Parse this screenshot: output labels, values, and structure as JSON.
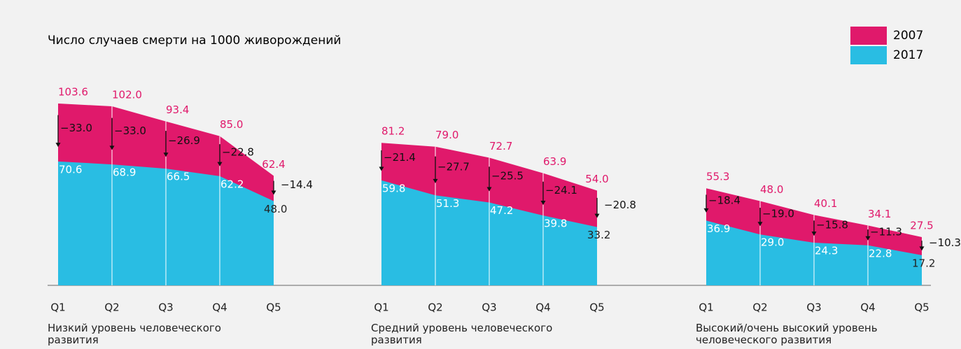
{
  "chart_data": [
    {
      "type": "area",
      "title": "Число случаев смерти на 1000 живорождений",
      "xlabel": "Низкий уровень человеческого развития",
      "categories": [
        "Q1",
        "Q2",
        "Q3",
        "Q4",
        "Q5"
      ],
      "series": [
        {
          "name": "2007",
          "color": "#e0196b",
          "values": [
            103.6,
            102.0,
            93.4,
            85.0,
            62.4
          ],
          "value_labels": [
            "103.6",
            "102.0",
            "93.4",
            "85.0",
            "62.4"
          ]
        },
        {
          "name": "2017",
          "color": "#29bde3",
          "values": [
            70.6,
            68.9,
            66.5,
            62.2,
            48.0
          ],
          "value_labels": [
            "70.6",
            "68.9",
            "66.5",
            "62.2",
            "48.0"
          ]
        }
      ],
      "changes": [
        -33.0,
        -33.0,
        -26.9,
        -22.8,
        -14.4
      ],
      "change_labels": [
        "−33.0",
        "−33.0",
        "−26.9",
        "−22.8",
        "−14.4"
      ],
      "ylim": [
        0,
        110
      ]
    },
    {
      "type": "area",
      "xlabel": "Средний уровень человеческого развития",
      "categories": [
        "Q1",
        "Q2",
        "Q3",
        "Q4",
        "Q5"
      ],
      "series": [
        {
          "name": "2007",
          "color": "#e0196b",
          "values": [
            81.2,
            79.0,
            72.7,
            63.9,
            54.0
          ],
          "value_labels": [
            "81.2",
            "79.0",
            "72.7",
            "63.9",
            "54.0"
          ]
        },
        {
          "name": "2017",
          "color": "#29bde3",
          "values": [
            59.8,
            51.3,
            47.2,
            39.8,
            33.2
          ],
          "value_labels": [
            "59.8",
            "51.3",
            "47.2",
            "39.8",
            "33.2"
          ]
        }
      ],
      "changes": [
        -21.4,
        -27.7,
        -25.5,
        -24.1,
        -20.8
      ],
      "change_labels": [
        "−21.4",
        "−27.7",
        "−25.5",
        "−24.1",
        "−20.8"
      ],
      "ylim": [
        0,
        110
      ]
    },
    {
      "type": "area",
      "xlabel": "Высокий/очень высокий уровень человеческого развития",
      "categories": [
        "Q1",
        "Q2",
        "Q3",
        "Q4",
        "Q5"
      ],
      "series": [
        {
          "name": "2007",
          "color": "#e0196b",
          "values": [
            55.3,
            48.0,
            40.1,
            34.1,
            27.5
          ],
          "value_labels": [
            "55.3",
            "48.0",
            "40.1",
            "34.1",
            "27.5"
          ]
        },
        {
          "name": "2017",
          "color": "#29bde3",
          "values": [
            36.9,
            29.0,
            24.3,
            22.8,
            17.2
          ],
          "value_labels": [
            "36.9",
            "29.0",
            "24.3",
            "22.8",
            "17.2"
          ]
        }
      ],
      "changes": [
        -18.4,
        -19.0,
        -15.8,
        -11.3,
        -10.3
      ],
      "change_labels": [
        "−18.4",
        "−19.0",
        "−15.8",
        "−11.3",
        "−10.3"
      ],
      "ylim": [
        0,
        110
      ]
    }
  ]
}
